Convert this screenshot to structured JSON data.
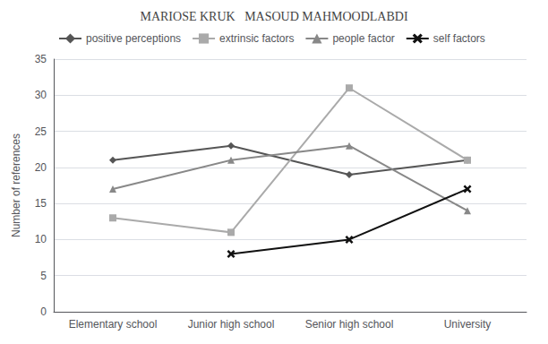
{
  "chart_data": {
    "type": "line",
    "title": "MARIOSE KRUK   MASOUD MAHMOODLABDI",
    "ylabel": "Number of references",
    "categories": [
      "Elementary school",
      "Junior high school",
      "Senior high school",
      "University"
    ],
    "series": [
      {
        "name": "positive perceptions",
        "color": "#555555",
        "marker": "diamond",
        "values": [
          21,
          23,
          19,
          21
        ]
      },
      {
        "name": "extrinsic factors",
        "color": "#aaaaaa",
        "marker": "square",
        "values": [
          13,
          11,
          31,
          21
        ]
      },
      {
        "name": "people factor",
        "color": "#888888",
        "marker": "triangle",
        "values": [
          17,
          21,
          23,
          14
        ]
      },
      {
        "name": "self factors",
        "color": "#111111",
        "marker": "x",
        "values": [
          null,
          8,
          10,
          17
        ]
      }
    ],
    "ylim": [
      0,
      35
    ],
    "yticks": [
      0,
      5,
      10,
      15,
      20,
      25,
      30,
      35
    ],
    "grid": true,
    "legend": "upper left"
  }
}
